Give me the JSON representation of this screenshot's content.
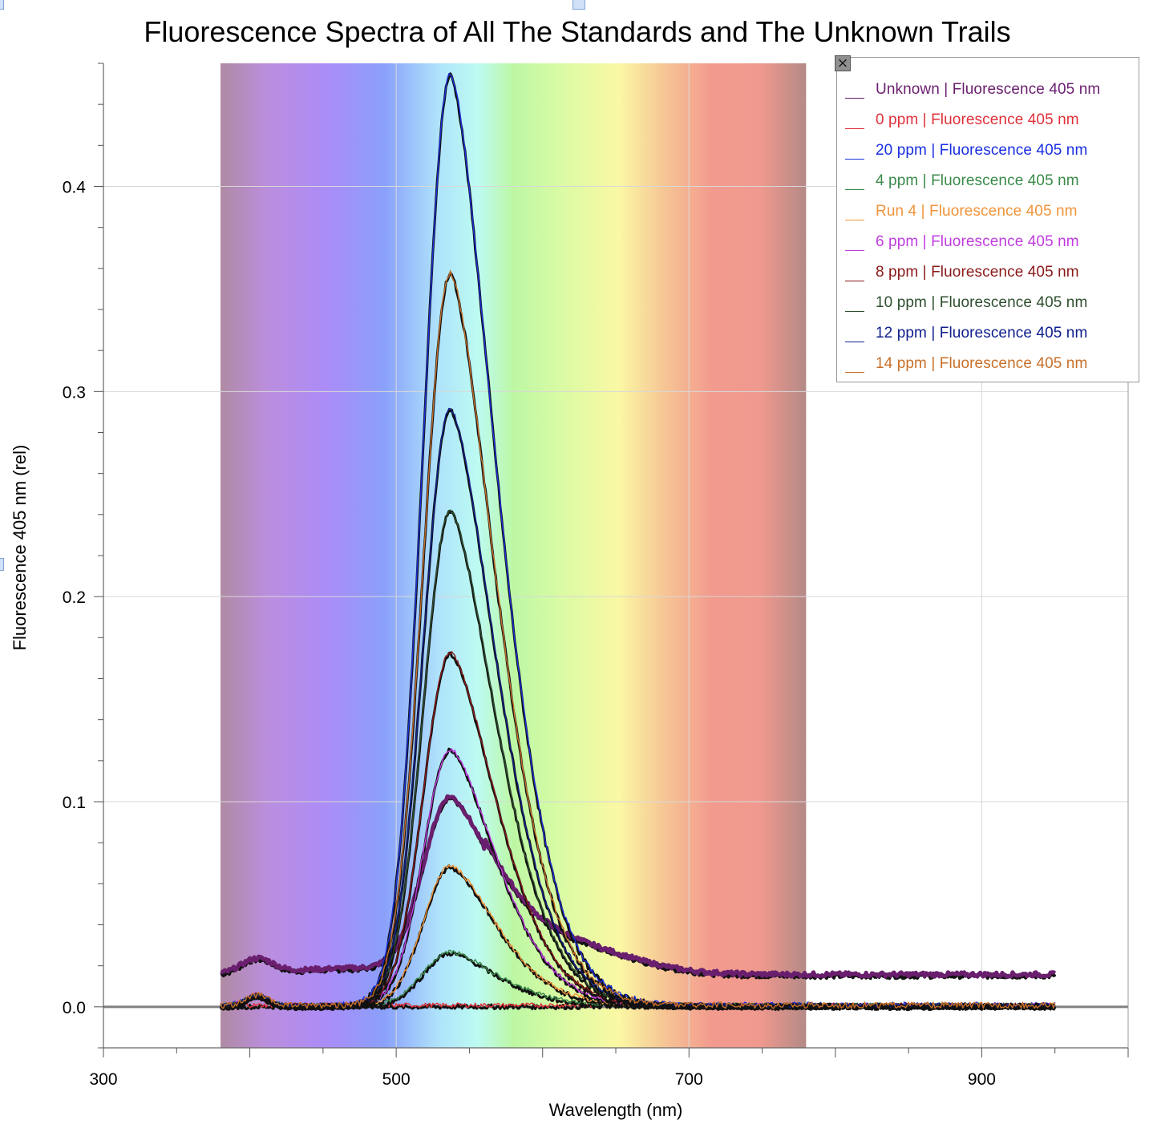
{
  "chart_data": {
    "type": "line",
    "title": "Fluorescence Spectra of All The Standards and The Unknown Trails",
    "xlabel": "Wavelength (nm)",
    "ylabel": "Fluorescence 405 nm (rel)",
    "xlim": [
      300,
      1000
    ],
    "ylim": [
      -0.02,
      0.46
    ],
    "x_ticks": [
      300,
      500,
      700,
      900
    ],
    "y_ticks": [
      0.0,
      0.1,
      0.2,
      0.3,
      0.4
    ],
    "grid": true,
    "legend_placement": "top-right",
    "spectrum_band": [
      380,
      780
    ],
    "peak_wavelength": 537,
    "series": [
      {
        "name": "Unknown | Fluorescence 405 nm",
        "color": "#6a1f6e",
        "peak": 0.101,
        "tail": 0.015,
        "x_end": 950
      },
      {
        "name": "0 ppm | Fluorescence 405 nm",
        "color": "#e0303a",
        "peak": 0.0,
        "tail": 0.0,
        "x_end": 640
      },
      {
        "name": "20 ppm | Fluorescence 405 nm",
        "color": "#1a2fe0",
        "peak": 0.454,
        "tail": 0.0,
        "x_end": 950
      },
      {
        "name": "4 ppm | Fluorescence 405 nm",
        "color": "#3a8a4a",
        "peak": 0.026,
        "tail": 0.0,
        "x_end": 950
      },
      {
        "name": "Run 4 | Fluorescence 405 nm",
        "color": "#f0943a",
        "peak": 0.068,
        "tail": 0.0,
        "x_end": 950
      },
      {
        "name": "6 ppm | Fluorescence 405 nm",
        "color": "#c13ce0",
        "peak": 0.125,
        "tail": 0.0,
        "x_end": 950
      },
      {
        "name": "8 ppm | Fluorescence 405 nm",
        "color": "#8a1a1a",
        "peak": 0.172,
        "tail": 0.0,
        "x_end": 950
      },
      {
        "name": "10 ppm | Fluorescence 405 nm",
        "color": "#2f4f2f",
        "peak": 0.241,
        "tail": 0.0,
        "x_end": 950
      },
      {
        "name": "12 ppm | Fluorescence 405 nm",
        "color": "#10208f",
        "peak": 0.291,
        "tail": 0.0,
        "x_end": 950
      },
      {
        "name": "14 ppm | Fluorescence 405 nm",
        "color": "#c8702a",
        "peak": 0.357,
        "tail": 0.0,
        "x_end": 950
      }
    ]
  },
  "legend": {
    "close_icon": "close-icon",
    "close_glyph": "×"
  }
}
